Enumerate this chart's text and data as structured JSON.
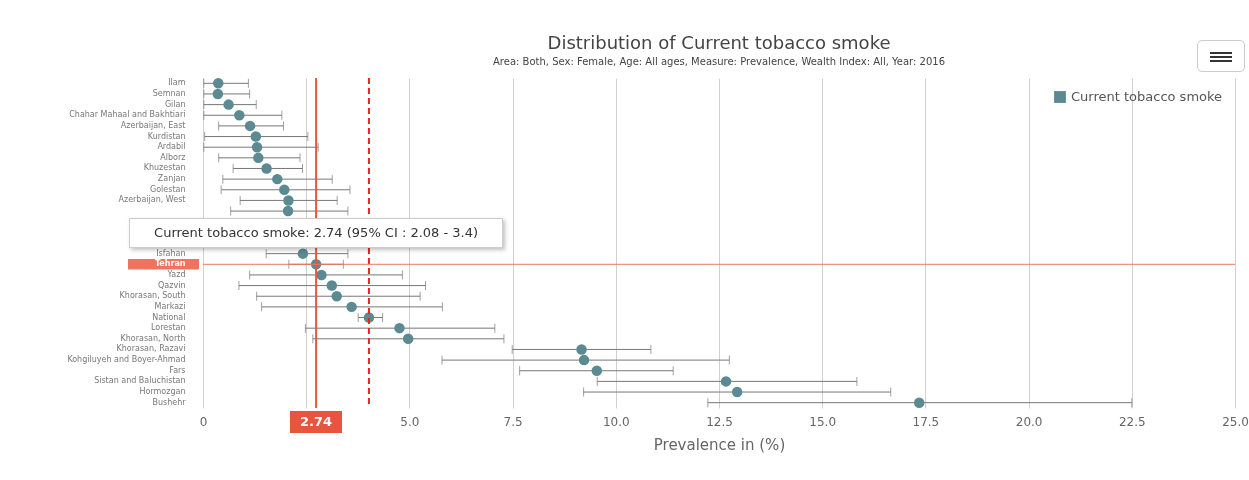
{
  "chart_data": {
    "type": "scatter",
    "title": "Distribution of Current tobacco smoke",
    "subtitle": "Area: Both, Sex: Female, Age: All ages, Measure: Prevalence, Wealth Index: All, Year: 2016",
    "xlabel": "Prevalence in (%)",
    "categories": [
      "Ilam",
      "Semnan",
      "Gilan",
      "Chahar Mahaal and Bakhtiari",
      "Azerbaijan, East",
      "Kurdistan",
      "Ardabil",
      "Alborz",
      "Khuzestan",
      "Zanjan",
      "Golestan",
      "Azerbaijan, West",
      null,
      null,
      null,
      null,
      "Isfahan",
      "Tehran",
      "Yazd",
      "Qazvin",
      "Khorasan, South",
      "Markazi",
      "National",
      "Lorestan",
      "Khorasan, North",
      "Khorasan, Razavi",
      "Kohgiluyeh and Boyer-Ahmad",
      "Fars",
      "Sistan and Baluchistan",
      "Hormozgan",
      "Bushehr"
    ],
    "series": [
      {
        "name": "Current tobacco smoke",
        "color": "#5b8a92",
        "values": [
          0.37,
          0.36,
          0.62,
          0.88,
          1.14,
          1.28,
          1.31,
          1.34,
          1.54,
          1.8,
          1.97,
          2.07,
          2.06,
          null,
          null,
          null,
          2.42,
          2.74,
          2.87,
          3.12,
          3.24,
          3.6,
          4.02,
          4.76,
          4.97,
          9.17,
          9.23,
          9.54,
          12.67,
          12.94,
          17.35
        ],
        "errors": [
          [
            0.02,
            1.1
          ],
          [
            0.02,
            1.13
          ],
          [
            0.02,
            1.29
          ],
          [
            0.02,
            1.91
          ],
          [
            0.38,
            1.95
          ],
          [
            0.04,
            2.54
          ],
          [
            0.02,
            2.79
          ],
          [
            0.38,
            2.35
          ],
          [
            0.73,
            2.41
          ],
          [
            0.48,
            3.13
          ],
          [
            0.44,
            3.56
          ],
          [
            0.9,
            3.25
          ],
          [
            0.67,
            3.51
          ],
          null,
          null,
          null,
          [
            1.53,
            3.51
          ],
          [
            2.08,
            3.4
          ],
          [
            1.13,
            4.83
          ],
          [
            0.87,
            5.39
          ],
          [
            1.3,
            5.26
          ],
          [
            1.42,
            5.8
          ],
          [
            3.76,
            4.35
          ],
          [
            2.48,
            7.07
          ],
          [
            2.66,
            7.29
          ],
          [
            7.49,
            10.85
          ],
          [
            5.79,
            12.75
          ],
          [
            7.67,
            11.39
          ],
          [
            9.55,
            15.84
          ],
          [
            9.22,
            16.66
          ],
          [
            12.23,
            22.5
          ]
        ]
      }
    ],
    "xlim": [
      0,
      25
    ],
    "xticks": [
      0,
      {
        "value": 2.5,
        "label": null
      },
      {
        "value": 5,
        "label": "5.0"
      },
      {
        "value": 7.5,
        "label": "7.5"
      },
      {
        "value": 10,
        "label": "10.0"
      },
      {
        "value": 12.5,
        "label": "12.5"
      },
      {
        "value": 15,
        "label": "15.0"
      },
      {
        "value": 17.5,
        "label": "17.5"
      },
      {
        "value": 20,
        "label": "20.0"
      },
      {
        "value": 22.5,
        "label": "22.5"
      },
      {
        "value": 25,
        "label": "25.0"
      }
    ],
    "ref_lines": [
      {
        "axis": "x",
        "value": 2.74,
        "label": "2.74",
        "color": "#e8553e",
        "line_style": "solid"
      },
      {
        "axis": "x",
        "value": 4.02,
        "color": "#ee2222",
        "line_style": "dashed"
      },
      {
        "axis": "y",
        "value": "Tehran",
        "color": "#f0735e",
        "line_style": "solid"
      }
    ],
    "annotations": [
      {
        "text": "Current tobacco smoke: 2.74 (95% CI : 2.08 - 3.4)",
        "x": 2.74,
        "y": "Tehran"
      }
    ],
    "grid": "x",
    "legend": "top right",
    "marker": "circle",
    "orientation": "horizontal"
  }
}
